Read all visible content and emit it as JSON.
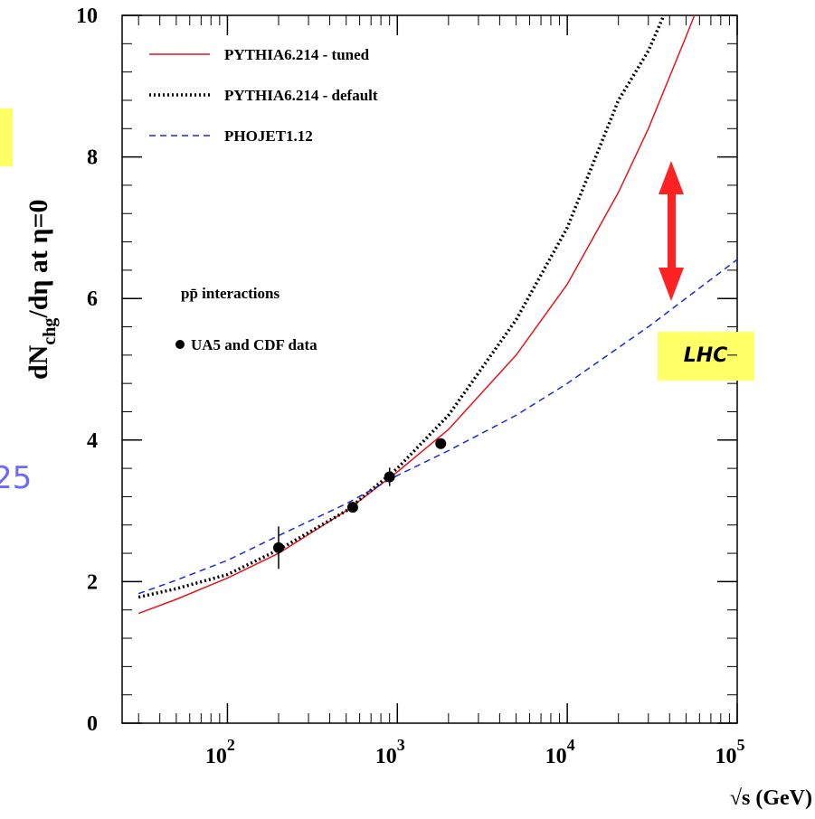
{
  "chart_data": {
    "type": "line",
    "xscale": "log",
    "xlabel": "√s (GeV)",
    "ylabel": "dN",
    "ylabel_sub": "chg",
    "ylabel_rest": "/dη at η=0",
    "xlim": [
      24,
      100000
    ],
    "ylim": [
      0,
      10
    ],
    "yticks": [
      0,
      2,
      4,
      6,
      8,
      10
    ],
    "yminorticks": [
      0.4,
      0.8,
      1.2,
      1.6,
      2.4,
      2.8,
      3.2,
      3.6,
      4.4,
      4.8,
      5.2,
      5.6,
      6.4,
      6.8,
      7.2,
      7.6,
      8.4,
      8.8,
      9.2,
      9.6
    ],
    "xticks": [
      {
        "value": 100,
        "label": "10",
        "exponent": "2"
      },
      {
        "value": 1000,
        "label": "10",
        "exponent": "3"
      },
      {
        "value": 10000,
        "label": "10",
        "exponent": "4"
      },
      {
        "value": 100000,
        "label": "10",
        "exponent": "5"
      }
    ],
    "xminorticks": [
      30,
      40,
      50,
      60,
      70,
      80,
      90,
      200,
      300,
      400,
      500,
      600,
      700,
      800,
      900,
      2000,
      3000,
      4000,
      5000,
      6000,
      7000,
      8000,
      9000,
      20000,
      30000,
      40000,
      50000,
      60000,
      70000,
      80000,
      90000
    ],
    "series": [
      {
        "name": "PYTHIA6.214 - tuned",
        "color": "#e8141e",
        "style": "solid",
        "x": [
          30,
          50,
          100,
          200,
          500,
          1000,
          2000,
          5000,
          10000,
          20000,
          30000,
          50000,
          56000
        ],
        "values": [
          1.55,
          1.75,
          2.05,
          2.4,
          3.0,
          3.55,
          4.15,
          5.2,
          6.2,
          7.5,
          8.4,
          9.7,
          10
        ]
      },
      {
        "name": "PYTHIA6.214 - default",
        "color": "#000000",
        "style": "dotted",
        "x": [
          30,
          50,
          100,
          200,
          500,
          1000,
          2000,
          5000,
          10000,
          20000,
          30000,
          37000
        ],
        "values": [
          1.78,
          1.9,
          2.1,
          2.45,
          3.0,
          3.6,
          4.35,
          5.7,
          7.0,
          8.8,
          9.5,
          10
        ]
      },
      {
        "name": "PHOJET1.12",
        "color": "#1a2bd6",
        "style": "dashed",
        "x": [
          30,
          50,
          100,
          200,
          500,
          1000,
          2000,
          5000,
          10000,
          30000,
          100000
        ],
        "values": [
          1.83,
          2.02,
          2.3,
          2.65,
          3.1,
          3.5,
          3.85,
          4.35,
          4.8,
          5.6,
          6.55
        ]
      }
    ],
    "points": {
      "name": "UA5 and CDF data",
      "color": "#000000",
      "x": [
        200,
        546,
        900,
        1800
      ],
      "values": [
        2.48,
        3.05,
        3.48,
        3.95
      ],
      "errors": [
        0.3,
        0.05,
        0.13,
        0.05
      ]
    },
    "annotations": {
      "process": "pp̄ interactions",
      "lhc": "LHC",
      "fragment": "25"
    }
  }
}
